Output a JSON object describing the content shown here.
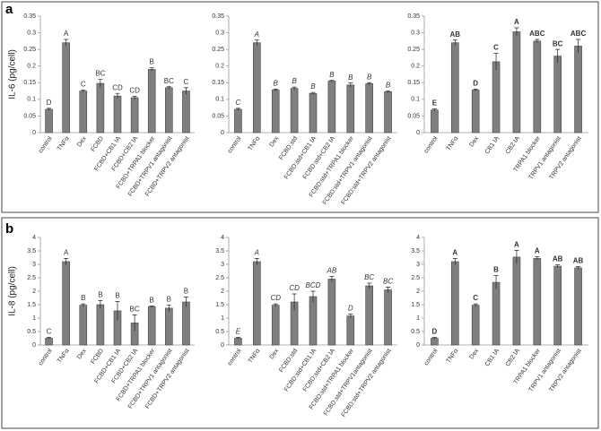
{
  "panels": [
    {
      "label": "a",
      "ylabel": "IL-6 (pg/cell)"
    },
    {
      "label": "b",
      "ylabel": "IL-8 (pg/cell)"
    }
  ],
  "chart_data": [
    {
      "type": "bar",
      "color": "#7f7f7f",
      "letter_style": "normal",
      "categories": [
        "control",
        "TNFα",
        "Dex",
        "FCBD",
        "FCBD+CB1 IA",
        "FCBD+CB2 IA",
        "FCBD+TRPA1 blocker",
        "FCBD+TRPV1 antagonist",
        "FCBD+TRPV2 antagonist"
      ],
      "values": [
        0.07,
        0.27,
        0.125,
        0.148,
        0.11,
        0.105,
        0.19,
        0.135,
        0.125
      ],
      "errors": [
        0.003,
        0.01,
        0.003,
        0.012,
        0.008,
        0.004,
        0.005,
        0.003,
        0.01
      ],
      "letters": [
        "D",
        "A",
        "C",
        "BC",
        "CD",
        "CD",
        "B",
        "BC",
        "C"
      ],
      "ylim": [
        0,
        0.35
      ],
      "yticks": [
        0,
        0.05,
        0.1,
        0.15,
        0.2,
        0.25,
        0.3,
        0.35
      ]
    },
    {
      "type": "bar",
      "color": "#7f7f7f",
      "letter_style": "italic",
      "categories": [
        "control",
        "TNFα",
        "Dex",
        "FCBD:std",
        "FCBD:std+CB1 IA",
        "FCBD:std+CB2 IA",
        "FCBD:std+TRPA1 blocker",
        "FCBD:std+TRPV1 antagonist",
        "FCBD:std+TRPV2 antagonist"
      ],
      "values": [
        0.07,
        0.27,
        0.128,
        0.133,
        0.118,
        0.155,
        0.143,
        0.147,
        0.123
      ],
      "errors": [
        0.003,
        0.008,
        0.003,
        0.004,
        0.003,
        0.002,
        0.006,
        0.003,
        0.003
      ],
      "letters": [
        "C",
        "A",
        "B",
        "B",
        "B",
        "B",
        "B",
        "B",
        "B"
      ],
      "ylim": [
        0,
        0.35
      ],
      "yticks": [
        0,
        0.05,
        0.1,
        0.15,
        0.2,
        0.25,
        0.3,
        0.35
      ]
    },
    {
      "type": "bar",
      "color": "#7f7f7f",
      "letter_style": "bold",
      "categories": [
        "control",
        "TNFα",
        "Dex",
        "CB1 IA",
        "CB2 IA",
        "TRPA1 blocker",
        "TRPV1 antagonist",
        "TRPV2 antagonist"
      ],
      "values": [
        0.068,
        0.27,
        0.128,
        0.213,
        0.303,
        0.275,
        0.23,
        0.26
      ],
      "errors": [
        0.003,
        0.008,
        0.003,
        0.025,
        0.012,
        0.005,
        0.02,
        0.02
      ],
      "letters": [
        "E",
        "AB",
        "D",
        "C",
        "A",
        "ABC",
        "BC",
        "ABC"
      ],
      "ylim": [
        0,
        0.35
      ],
      "yticks": [
        0,
        0.05,
        0.1,
        0.15,
        0.2,
        0.25,
        0.3,
        0.35
      ]
    },
    {
      "type": "bar",
      "color": "#7f7f7f",
      "letter_style": "normal",
      "categories": [
        "control",
        "TNFα",
        "Dex",
        "FCBD",
        "FCBD+CB1 IA",
        "FCBD+CB2 IA",
        "FCBD+TRPA1 blocker",
        "FCBD+TRPV1 antagonist",
        "FCBD+TRPV2 antagonist"
      ],
      "values": [
        0.25,
        3.1,
        1.48,
        1.5,
        1.27,
        0.82,
        1.43,
        1.37,
        1.6
      ],
      "errors": [
        0.03,
        0.12,
        0.05,
        0.15,
        0.35,
        0.3,
        0.02,
        0.12,
        0.18
      ],
      "letters": [
        "C",
        "A",
        "B",
        "B",
        "B",
        "BC",
        "B",
        "B",
        "B"
      ],
      "ylim": [
        0,
        4
      ],
      "yticks": [
        0,
        0.5,
        1,
        1.5,
        2,
        2.5,
        3,
        3.5,
        4
      ]
    },
    {
      "type": "bar",
      "color": "#7f7f7f",
      "letter_style": "italic",
      "categories": [
        "control",
        "TNFα",
        "Dex",
        "FCBD:std",
        "FCBD:std+CB1 IA",
        "FCBD:std+CB2 IA",
        "FCBD:std+TRPA1 blocker",
        "FCBD:std+TRPV1antagonist",
        "FCBD:std+TRPV2 antagonist"
      ],
      "values": [
        0.25,
        3.1,
        1.48,
        1.6,
        1.8,
        2.45,
        1.08,
        2.2,
        2.05
      ],
      "errors": [
        0.03,
        0.12,
        0.05,
        0.3,
        0.2,
        0.1,
        0.07,
        0.1,
        0.1
      ],
      "letters": [
        "E",
        "A",
        "CD",
        "CD",
        "BCD",
        "AB",
        "D",
        "BC",
        "BC"
      ],
      "ylim": [
        0,
        4
      ],
      "yticks": [
        0,
        0.5,
        1,
        1.5,
        2,
        2.5,
        3,
        3.5,
        4
      ]
    },
    {
      "type": "bar",
      "color": "#7f7f7f",
      "letter_style": "bold",
      "categories": [
        "control",
        "TNFα",
        "Dex",
        "CB1 IA",
        "CB2 IA",
        "TRPA1 blocker",
        "TRPV1 antagonist",
        "TRPV2 antagonist"
      ],
      "values": [
        0.25,
        3.1,
        1.48,
        2.33,
        3.27,
        3.22,
        2.93,
        2.87
      ],
      "errors": [
        0.03,
        0.12,
        0.05,
        0.25,
        0.25,
        0.06,
        0.05,
        0.05
      ],
      "letters": [
        "D",
        "A",
        "C",
        "B",
        "A",
        "A",
        "AB",
        "AB"
      ],
      "ylim": [
        0,
        4
      ],
      "yticks": [
        0,
        0.5,
        1,
        1.5,
        2,
        2.5,
        3,
        3.5,
        4
      ]
    }
  ]
}
